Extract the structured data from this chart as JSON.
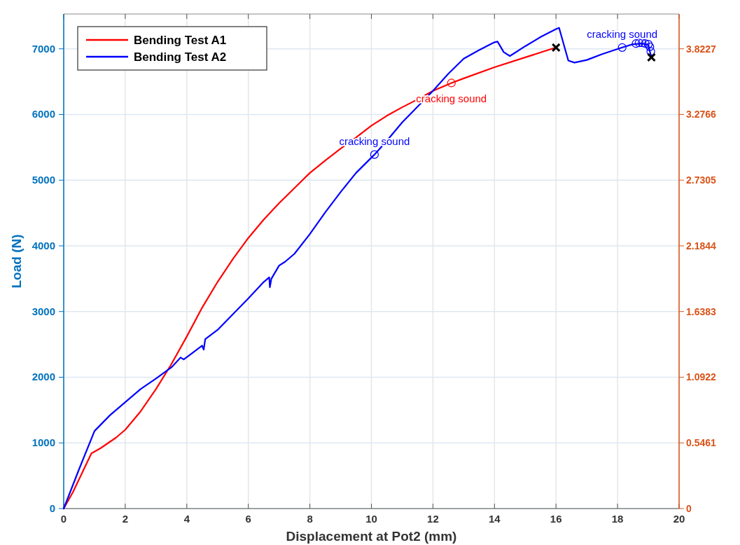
{
  "chart_data": {
    "type": "line",
    "xlabel": "Displacement at Pot2 (mm)",
    "ylabel": "Load (N)",
    "xlim": [
      0,
      20
    ],
    "xticks": [
      0,
      2,
      4,
      6,
      8,
      10,
      12,
      14,
      16,
      18,
      20
    ],
    "ylim": [
      0,
      7530
    ],
    "yticks": [
      0,
      1000,
      2000,
      3000,
      4000,
      5000,
      6000,
      7000
    ],
    "y2lim": [
      0,
      4.112
    ],
    "y2ticks": [
      0,
      0.5461,
      1.0922,
      1.6383,
      2.1844,
      2.7305,
      3.2766,
      3.8227
    ],
    "grid": true,
    "legend": "top left",
    "marker": "none",
    "line_style": "solid",
    "series": [
      {
        "name": "Bending Test A1",
        "color": "#ff0000",
        "x": [
          0,
          0.3,
          0.9,
          1.2,
          1.7,
          2.0,
          2.5,
          3.0,
          3.5,
          4.0,
          4.5,
          5.0,
          5.5,
          6.0,
          6.5,
          7.0,
          7.5,
          8.0,
          8.5,
          9.0,
          9.5,
          10.0,
          10.5,
          11.0,
          11.5,
          12.0,
          12.6,
          13.0,
          14.0,
          15.0,
          16.0
        ],
        "values": [
          0,
          250,
          840,
          920,
          1080,
          1200,
          1480,
          1820,
          2200,
          2620,
          3060,
          3450,
          3800,
          4120,
          4400,
          4650,
          4880,
          5110,
          5300,
          5480,
          5650,
          5830,
          5980,
          6110,
          6230,
          6360,
          6480,
          6550,
          6720,
          6870,
          7020
        ]
      },
      {
        "name": "Bending Test A2",
        "color": "#0000ff",
        "x": [
          0,
          0.5,
          1.0,
          1.5,
          2.0,
          2.5,
          3.0,
          3.5,
          3.8,
          3.9,
          4.5,
          4.55,
          4.6,
          5.0,
          5.5,
          6.0,
          6.5,
          6.68,
          6.7,
          6.75,
          7.0,
          7.2,
          7.5,
          8.0,
          8.5,
          9.0,
          9.5,
          10.1,
          10.5,
          11.0,
          11.5,
          12.0,
          12.5,
          13.0,
          13.5,
          14.0,
          14.1,
          14.3,
          14.5,
          15.0,
          15.5,
          16.0,
          16.1,
          16.4,
          16.6,
          17.0,
          17.5,
          18.15,
          18.5,
          18.8,
          19.0,
          19.05,
          19.1
        ],
        "values": [
          0,
          600,
          1180,
          1420,
          1620,
          1820,
          1980,
          2150,
          2300,
          2270,
          2480,
          2420,
          2580,
          2720,
          2960,
          3200,
          3450,
          3520,
          3370,
          3500,
          3700,
          3760,
          3880,
          4180,
          4510,
          4820,
          5110,
          5390,
          5600,
          5880,
          6120,
          6360,
          6620,
          6850,
          6980,
          7100,
          7110,
          6950,
          6890,
          7040,
          7180,
          7300,
          7320,
          6820,
          6790,
          6830,
          6920,
          7020,
          7070,
          7080,
          7060,
          6960,
          6870
        ]
      },
      {
        "type": "scatter",
        "marker": "circle",
        "color": "#ff0000",
        "x": [
          12.6
        ],
        "values": [
          6480
        ]
      },
      {
        "type": "scatter",
        "marker": "circle",
        "color": "#0000ff",
        "x": [
          10.1,
          18.15,
          18.6,
          18.7,
          18.8,
          18.9,
          19.0,
          19.05,
          19.08
        ],
        "values": [
          5390,
          7020,
          7080,
          7090,
          7090,
          7080,
          7070,
          7030,
          6960
        ]
      },
      {
        "type": "scatter",
        "marker": "cross",
        "color": "#000000",
        "x": [
          16.0,
          19.1
        ],
        "values": [
          7020,
          6870
        ]
      }
    ],
    "annotations": [
      {
        "text": "cracking sound",
        "x": 12.6,
        "y": 6480
      },
      {
        "text": "cracking sound",
        "x": 10.1,
        "y": 5390
      },
      {
        "text": "cracking sound",
        "x": 18.15,
        "y": 7020
      }
    ]
  }
}
